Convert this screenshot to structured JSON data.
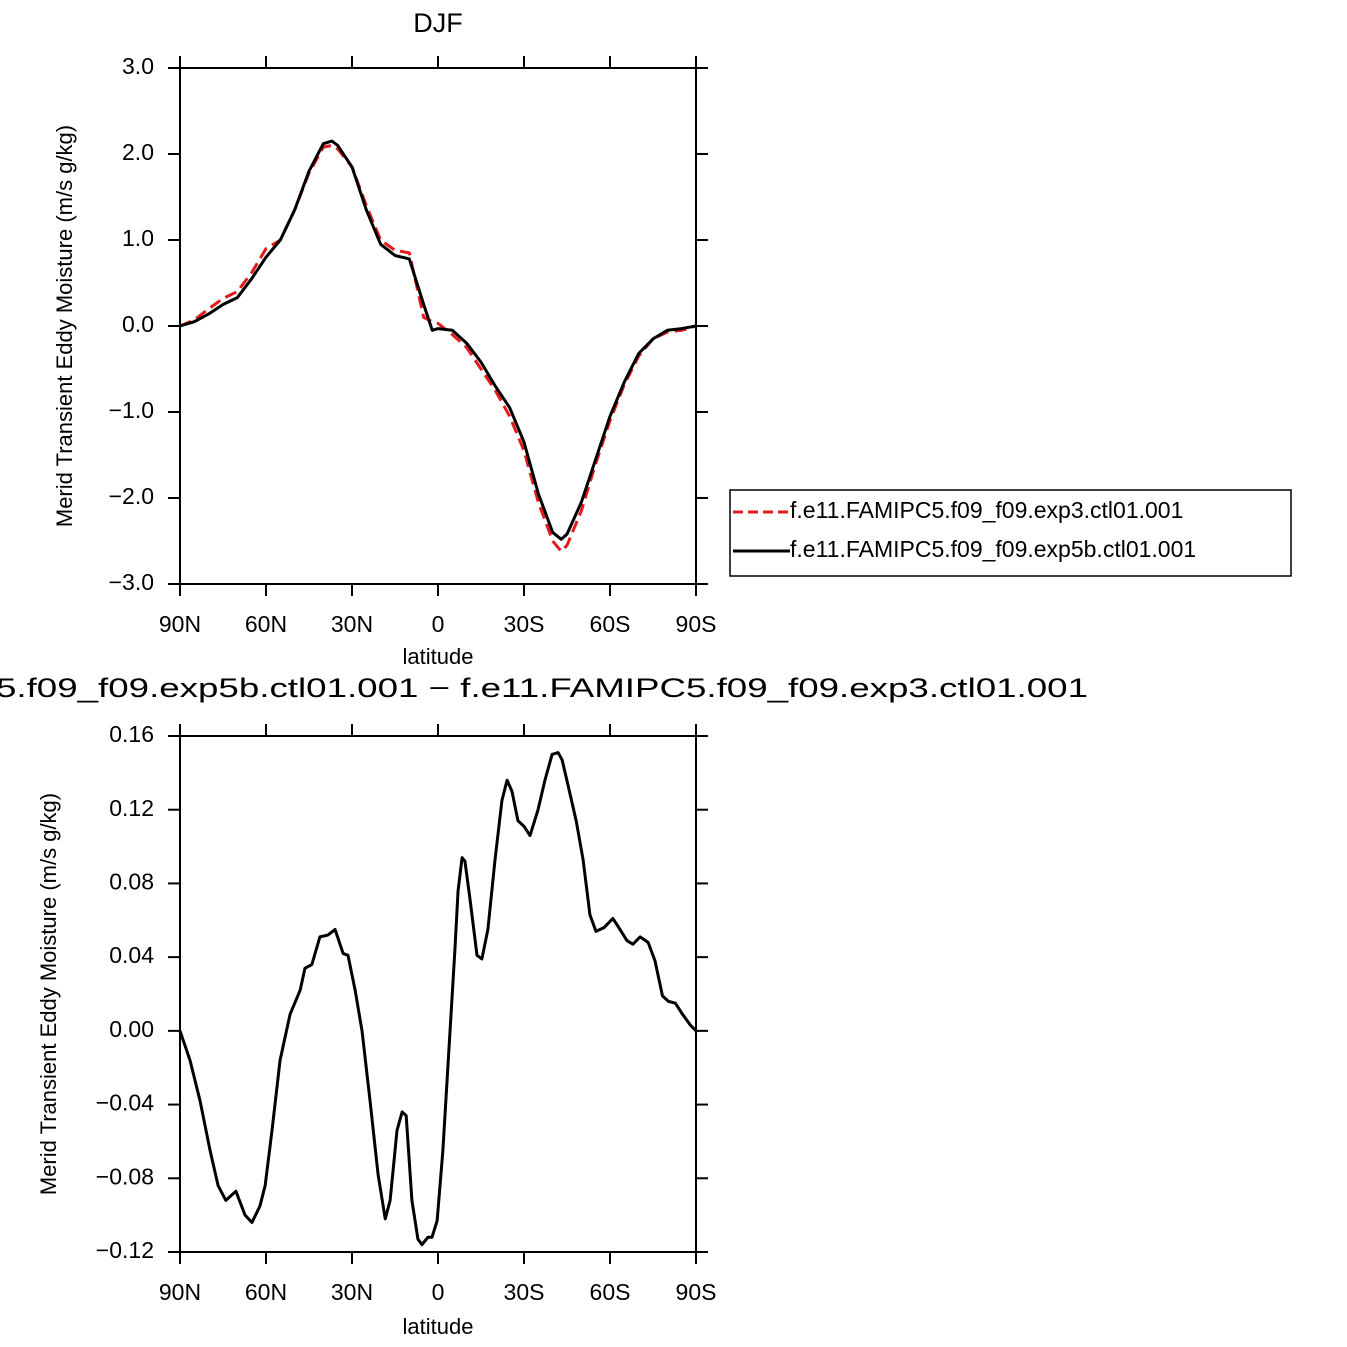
{
  "chart_data": [
    {
      "type": "line",
      "title": "DJF",
      "xlabel": "latitude",
      "ylabel": "Merid Transient Eddy Moisture (m/s g/kg)",
      "x": [
        90,
        85,
        80,
        75,
        70,
        65,
        60,
        55,
        50,
        45,
        40,
        37,
        35,
        30,
        25,
        20,
        15,
        10,
        5,
        2,
        0,
        -5,
        -10,
        -15,
        -20,
        -25,
        -30,
        -35,
        -40,
        -43,
        -45,
        -50,
        -55,
        -60,
        -65,
        -70,
        -75,
        -80,
        -85,
        -90
      ],
      "series": [
        {
          "name": "f.e11.FAMIPC5.f09_f09.exp3.ctl01.001",
          "color": "#e41a1c",
          "linestyle": "dashed",
          "values": [
            0.0,
            0.07,
            0.2,
            0.32,
            0.4,
            0.62,
            0.9,
            1.0,
            1.35,
            1.78,
            2.08,
            2.1,
            2.06,
            1.85,
            1.4,
            1.0,
            0.88,
            0.85,
            0.1,
            0.05,
            0.03,
            -0.1,
            -0.25,
            -0.5,
            -0.75,
            -1.05,
            -1.45,
            -2.05,
            -2.5,
            -2.62,
            -2.55,
            -2.15,
            -1.6,
            -1.1,
            -0.68,
            -0.35,
            -0.15,
            -0.07,
            -0.05,
            0.0
          ]
        },
        {
          "name": "f.e11.FAMIPC5.f09_f09.exp5b.ctl01.001",
          "color": "#000000",
          "linestyle": "solid",
          "values": [
            0.0,
            0.05,
            0.14,
            0.25,
            0.33,
            0.55,
            0.8,
            1.0,
            1.35,
            1.8,
            2.12,
            2.15,
            2.1,
            1.85,
            1.35,
            0.95,
            0.82,
            0.78,
            0.25,
            -0.05,
            -0.03,
            -0.05,
            -0.2,
            -0.42,
            -0.7,
            -0.95,
            -1.35,
            -1.95,
            -2.4,
            -2.48,
            -2.42,
            -2.05,
            -1.55,
            -1.05,
            -0.65,
            -0.32,
            -0.15,
            -0.05,
            -0.03,
            0.0
          ]
        }
      ],
      "xlim": [
        90,
        -90
      ],
      "xticks": [
        {
          "value": 90,
          "label": "90N"
        },
        {
          "value": 60,
          "label": "60N"
        },
        {
          "value": 30,
          "label": "30N"
        },
        0,
        {
          "value": -30,
          "label": "30S"
        },
        {
          "value": -60,
          "label": "60S"
        },
        {
          "value": -90,
          "label": "90S"
        }
      ],
      "ylim": [
        -3.0,
        3.0
      ],
      "yticks": [
        {
          "value": 3,
          "label": "3.0"
        },
        {
          "value": 2,
          "label": "2.0"
        },
        {
          "value": 1,
          "label": "1.0"
        },
        {
          "value": 0,
          "label": "0.0"
        },
        {
          "value": -1,
          "label": "−1.0"
        },
        {
          "value": -2,
          "label": "−2.0"
        },
        {
          "value": -3,
          "label": "−3.0"
        }
      ],
      "legend": "outside right"
    },
    {
      "type": "line",
      "title": "5.f09_f09.exp5b.ctl01.001 − f.e11.FAMIPC5.f09_f09.exp3.ctl01.001",
      "xlabel": "latitude",
      "ylabel": "Merid Transient Eddy Moisture (m/s g/kg)",
      "x": [
        90,
        86.5,
        83.0,
        79.5,
        76.7,
        74.0,
        70.5,
        67.3,
        64.9,
        62.1,
        60.3,
        57.9,
        55.1,
        51.6,
        48.1,
        46.4,
        44.0,
        41.2,
        38.4,
        35.9,
        33.1,
        31.4,
        28.9,
        26.5,
        23.7,
        20.9,
        18.4,
        16.7,
        14.3,
        12.5,
        11.1,
        9.1,
        7.0,
        5.6,
        3.5,
        2.1,
        0.3,
        -1.7,
        -4.2,
        -5.9,
        -7.0,
        -8.4,
        -9.4,
        -11.2,
        -13.6,
        -15.3,
        -17.4,
        -19.9,
        -22.3,
        -24.1,
        -25.8,
        -27.9,
        -30.0,
        -32.1,
        -34.9,
        -37.3,
        -39.8,
        -41.9,
        -43.3,
        -45.4,
        -48.2,
        -50.6,
        -53.0,
        -55.1,
        -57.9,
        -61.0,
        -63.5,
        -65.9,
        -68.0,
        -70.5,
        -73.3,
        -75.7,
        -78.3,
        -80.4,
        -82.8,
        -85.3,
        -88.1,
        -90
      ],
      "series": [
        {
          "color": "#000000",
          "linestyle": "solid",
          "values": [
            0.0,
            -0.016,
            -0.038,
            -0.065,
            -0.084,
            -0.092,
            -0.087,
            -0.1,
            -0.104,
            -0.095,
            -0.084,
            -0.054,
            -0.016,
            0.009,
            0.022,
            0.034,
            0.036,
            0.051,
            0.052,
            0.055,
            0.042,
            0.041,
            0.022,
            0.0,
            -0.038,
            -0.078,
            -0.102,
            -0.092,
            -0.054,
            -0.044,
            -0.046,
            -0.092,
            -0.113,
            -0.116,
            -0.112,
            -0.112,
            -0.103,
            -0.065,
            0.0,
            0.044,
            0.076,
            0.094,
            0.092,
            0.071,
            0.041,
            0.039,
            0.055,
            0.093,
            0.125,
            0.136,
            0.13,
            0.114,
            0.111,
            0.106,
            0.12,
            0.136,
            0.15,
            0.151,
            0.147,
            0.133,
            0.114,
            0.093,
            0.063,
            0.054,
            0.056,
            0.061,
            0.055,
            0.049,
            0.047,
            0.051,
            0.048,
            0.038,
            0.019,
            0.016,
            0.015,
            0.009,
            0.003,
            0.0
          ]
        }
      ],
      "xlim": [
        90,
        -90
      ],
      "xticks": [
        {
          "value": 90,
          "label": "90N"
        },
        {
          "value": 60,
          "label": "60N"
        },
        {
          "value": 30,
          "label": "30N"
        },
        0,
        {
          "value": -30,
          "label": "30S"
        },
        {
          "value": -60,
          "label": "60S"
        },
        {
          "value": -90,
          "label": "90S"
        }
      ],
      "ylim": [
        -0.12,
        0.16
      ],
      "yticks": [
        0.16,
        0.12,
        0.08,
        0.04,
        {
          "value": 0,
          "label": "0.00"
        },
        {
          "value": -0.04,
          "label": "−0.04"
        },
        {
          "value": -0.08,
          "label": "−0.08"
        },
        {
          "value": -0.12,
          "label": "−0.12"
        }
      ]
    }
  ]
}
